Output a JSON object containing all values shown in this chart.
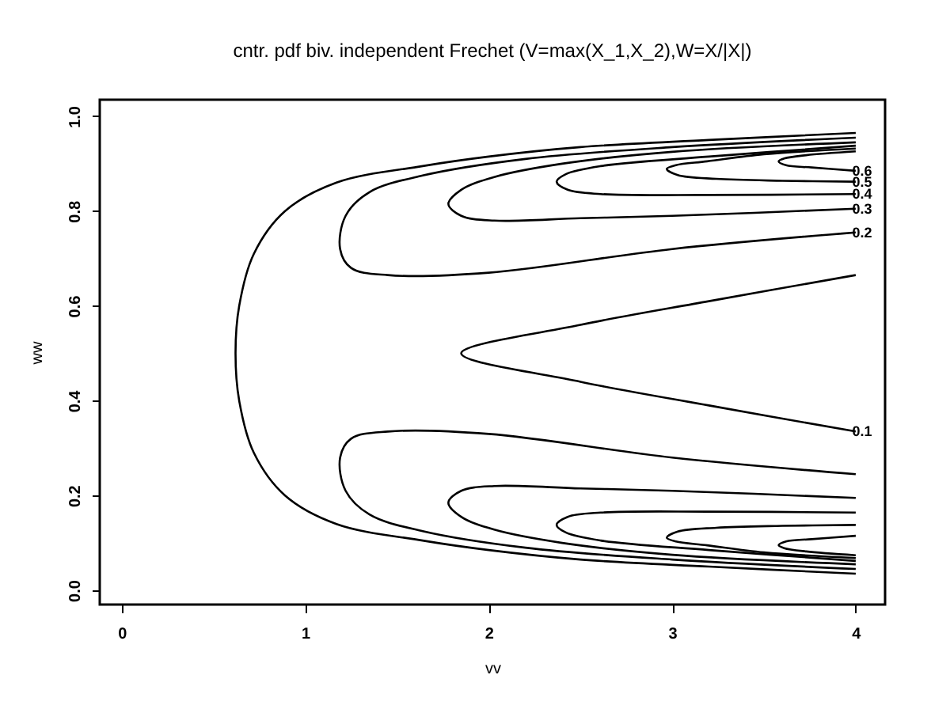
{
  "chart_data": {
    "type": "line",
    "title": "cntr. pdf biv. independent Frechet (V=max(X_1,X_2),W=X/|X|)",
    "xlabel": "vv",
    "ylabel": "ww",
    "xlim": [
      -0.12,
      4.16
    ],
    "ylim": [
      -0.03,
      1.035
    ],
    "xticks": [
      0,
      1,
      2,
      3,
      4
    ],
    "yticks": [
      {
        "value": 0,
        "label": "0.0"
      },
      0.2,
      0.4,
      0.6,
      0.8,
      {
        "value": 1,
        "label": "1.0"
      }
    ],
    "grid": false,
    "legend": false,
    "marker": "none",
    "line_style": "solid",
    "series": [
      {
        "color": "#000000",
        "x": [
          4,
          3.2,
          2.5,
          2,
          1.64,
          1.17,
          0.89,
          0.72,
          0.64,
          0.62,
          0.64,
          0.72,
          0.89,
          1.17,
          1.64,
          2,
          2.5,
          3.2,
          4
        ],
        "values": [
          0.965,
          0.95,
          0.935,
          0.915,
          0.895,
          0.86,
          0.8,
          0.71,
          0.6,
          0.5,
          0.4,
          0.29,
          0.2,
          0.14,
          0.105,
          0.085,
          0.065,
          0.05,
          0.035
        ]
      },
      {
        "name": "0.1",
        "color": "#000000",
        "x": [
          4,
          3.2,
          2.5,
          1.85,
          2.5,
          3.2,
          4
        ],
        "values": [
          0.665,
          0.61,
          0.56,
          0.5,
          0.44,
          0.39,
          0.335
        ]
      },
      {
        "name": "0.2",
        "color": "#000000",
        "x": [
          4,
          3,
          2.2,
          1.64,
          1.35,
          1.22,
          1.19,
          1.25,
          1.45,
          2,
          3,
          4
        ],
        "values": [
          0.955,
          0.935,
          0.91,
          0.875,
          0.84,
          0.79,
          0.72,
          0.68,
          0.665,
          0.67,
          0.72,
          0.755
        ]
      },
      {
        "color": "#000000",
        "x": [
          4,
          3,
          2.2,
          1.64,
          1.35,
          1.22,
          1.19,
          1.25,
          1.45,
          2,
          3,
          4
        ],
        "values": [
          0.045,
          0.065,
          0.09,
          0.125,
          0.16,
          0.21,
          0.28,
          0.32,
          0.335,
          0.33,
          0.28,
          0.245
        ]
      },
      {
        "name": "0.3",
        "color": "#000000",
        "x": [
          4,
          3,
          2.4,
          2.03,
          1.85,
          1.78,
          1.85,
          2.03,
          2.5,
          3,
          4
        ],
        "values": [
          0.945,
          0.925,
          0.9,
          0.872,
          0.845,
          0.815,
          0.79,
          0.78,
          0.785,
          0.79,
          0.805
        ]
      },
      {
        "color": "#000000",
        "x": [
          4,
          3,
          2.4,
          2.03,
          1.85,
          1.78,
          1.85,
          2.03,
          2.5,
          3,
          4
        ],
        "values": [
          0.055,
          0.075,
          0.1,
          0.128,
          0.155,
          0.185,
          0.21,
          0.22,
          0.215,
          0.21,
          0.195
        ]
      },
      {
        "name": "0.4",
        "color": "#000000",
        "x": [
          4,
          3.2,
          2.61,
          2.42,
          2.37,
          2.43,
          2.61,
          3.2,
          4
        ],
        "values": [
          0.938,
          0.915,
          0.895,
          0.878,
          0.862,
          0.845,
          0.836,
          0.834,
          0.836
        ]
      },
      {
        "color": "#000000",
        "x": [
          4,
          3.2,
          2.61,
          2.42,
          2.37,
          2.43,
          2.61,
          3.2,
          4
        ],
        "values": [
          0.062,
          0.085,
          0.105,
          0.122,
          0.138,
          0.155,
          0.164,
          0.166,
          0.164
        ]
      },
      {
        "name": "0.5",
        "color": "#000000",
        "x": [
          4,
          3.5,
          3.19,
          3.02,
          2.97,
          3.03,
          3.24,
          3.6,
          4
        ],
        "values": [
          0.932,
          0.92,
          0.905,
          0.897,
          0.889,
          0.876,
          0.868,
          0.864,
          0.862
        ]
      },
      {
        "color": "#000000",
        "x": [
          4,
          3.5,
          3.19,
          3.02,
          2.97,
          3.03,
          3.24,
          3.6,
          4
        ],
        "values": [
          0.068,
          0.08,
          0.095,
          0.103,
          0.111,
          0.124,
          0.132,
          0.136,
          0.138
        ]
      },
      {
        "name": "0.6",
        "color": "#000000",
        "x": [
          4,
          3.73,
          3.61,
          3.58,
          3.62,
          3.76,
          4
        ],
        "values": [
          0.926,
          0.918,
          0.911,
          0.905,
          0.897,
          0.892,
          0.885
        ]
      },
      {
        "color": "#000000",
        "x": [
          4,
          3.73,
          3.61,
          3.58,
          3.62,
          3.76,
          4
        ],
        "values": [
          0.074,
          0.082,
          0.089,
          0.095,
          0.103,
          0.108,
          0.115
        ]
      }
    ]
  }
}
